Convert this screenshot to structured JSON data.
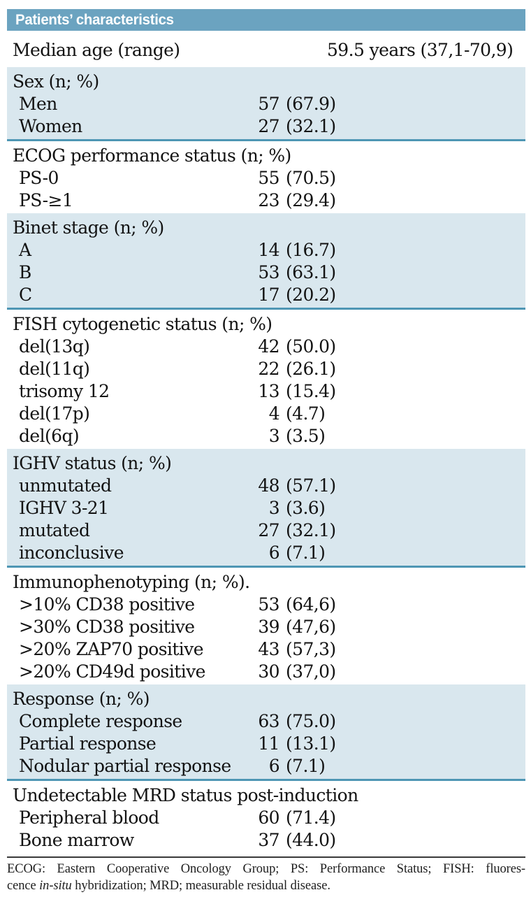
{
  "title": "Patients’ characteristics",
  "colors": {
    "header_bg": "#6BA3C0",
    "band_bg": "#D9E7EE",
    "band_border": "#4E96B4",
    "footnote_rule": "#3a3a3a",
    "text": "#121212"
  },
  "sections": [
    {
      "type": "single",
      "label": "Median age (range)",
      "value": "59.5 years (37,1-70,9)"
    },
    {
      "header": "Sex (n; %)",
      "rows": [
        {
          "label": "Men",
          "n": "57",
          "pct": "(67.9)"
        },
        {
          "label": "Women",
          "n": "27",
          "pct": "(32.1)"
        }
      ]
    },
    {
      "header": "ECOG performance status (n; %)",
      "rows": [
        {
          "label": "PS-0",
          "n": "55",
          "pct": "(70.5)"
        },
        {
          "label": "PS-≥1",
          "n": "23",
          "pct": "(29.4)"
        }
      ]
    },
    {
      "header": "Binet stage (n; %)",
      "rows": [
        {
          "label": "A",
          "n": "14",
          "pct": "(16.7)"
        },
        {
          "label": "B",
          "n": "53",
          "pct": "(63.1)"
        },
        {
          "label": "C",
          "n": "17",
          "pct": "(20.2)"
        }
      ]
    },
    {
      "header": "FISH cytogenetic status (n; %)",
      "rows": [
        {
          "label": "del(13q)",
          "n": "42",
          "pct": "(50.0)"
        },
        {
          "label": "del(11q)",
          "n": "22",
          "pct": "(26.1)"
        },
        {
          "label": "trisomy 12",
          "n": "13",
          "pct": "(15.4)"
        },
        {
          "label": "del(17p)",
          "n": "4",
          "pct": "(4.7)"
        },
        {
          "label": "del(6q)",
          "n": "3",
          "pct": "(3.5)"
        }
      ]
    },
    {
      "header": "IGHV status (n; %)",
      "rows": [
        {
          "label": "unmutated",
          "n": "48",
          "pct": "(57.1)"
        },
        {
          "label": "IGHV 3-21",
          "n": "3",
          "pct": "(3.6)"
        },
        {
          "label": "mutated",
          "n": "27",
          "pct": "(32.1)"
        },
        {
          "label": "inconclusive",
          "n": "6",
          "pct": "(7.1)"
        }
      ]
    },
    {
      "header": "Immunophenotyping (n; %).",
      "rows": [
        {
          "label": ">10% CD38 positive",
          "n": "53",
          "pct": "(64,6)"
        },
        {
          "label": ">30% CD38 positive",
          "n": "39",
          "pct": "(47,6)"
        },
        {
          "label": ">20% ZAP70 positive",
          "n": "43",
          "pct": "(57,3)"
        },
        {
          "label": ">20% CD49d positive",
          "n": "30",
          "pct": "(37,0)"
        }
      ]
    },
    {
      "header": "Response (n; %)",
      "rows": [
        {
          "label": "Complete response",
          "n": "63",
          "pct": "(75.0)"
        },
        {
          "label": "Partial response",
          "n": "11",
          "pct": "(13.1)"
        },
        {
          "label": "Nodular partial response",
          "n": "6",
          "pct": "(7.1)"
        }
      ]
    },
    {
      "header": "Undetectable MRD status post-induction",
      "rows": [
        {
          "label": "Peripheral blood",
          "n": "60",
          "pct": "(71.4)"
        },
        {
          "label": "Bone marrow",
          "n": "37",
          "pct": "(44.0)"
        }
      ]
    }
  ],
  "footnote": {
    "line1": "ECOG: Eastern Cooperative Oncology Group; PS: Performance Status; FISH: fluores-",
    "line2_pre": "cence ",
    "line2_italic": "in-situ",
    "line2_post": " hybridization; MRD; measurable residual disease."
  }
}
